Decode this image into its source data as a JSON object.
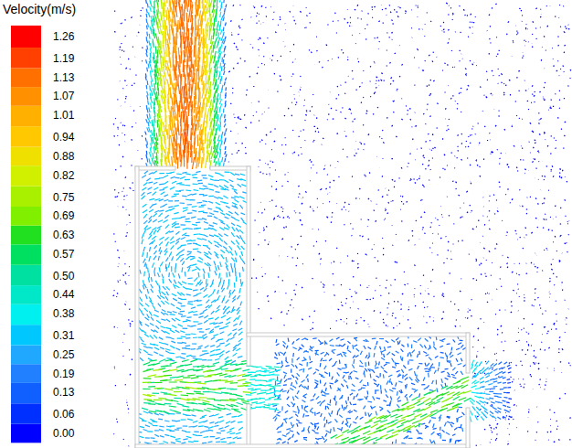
{
  "chart_data": {
    "type": "vector_field",
    "title": "Velocity(m/s)",
    "colorbar": {
      "range": [
        0,
        1.26
      ],
      "ticks": [
        {
          "value": 0,
          "label": "0.00"
        },
        0.06,
        0.13,
        0.19,
        0.25,
        0.31,
        0.38,
        0.44,
        {
          "value": 0.5,
          "label": "0.50"
        },
        0.57,
        0.63,
        0.69,
        0.75,
        0.82,
        0.88,
        0.94,
        1.01,
        1.07,
        1.13,
        1.19,
        1.26
      ],
      "colors": [
        "#0000ff",
        "#0030ff",
        "#1060ff",
        "#2080ff",
        "#20a8ff",
        "#00c8ff",
        "#00f0f0",
        "#00e8c8",
        "#00e0a0",
        "#00e060",
        "#20e020",
        "#80f000",
        "#a8f000",
        "#d0f000",
        "#f0e000",
        "#ffc800",
        "#ffb000",
        "#ff9000",
        "#ff7000",
        "#ff4000",
        "#ff0000"
      ]
    }
  }
}
